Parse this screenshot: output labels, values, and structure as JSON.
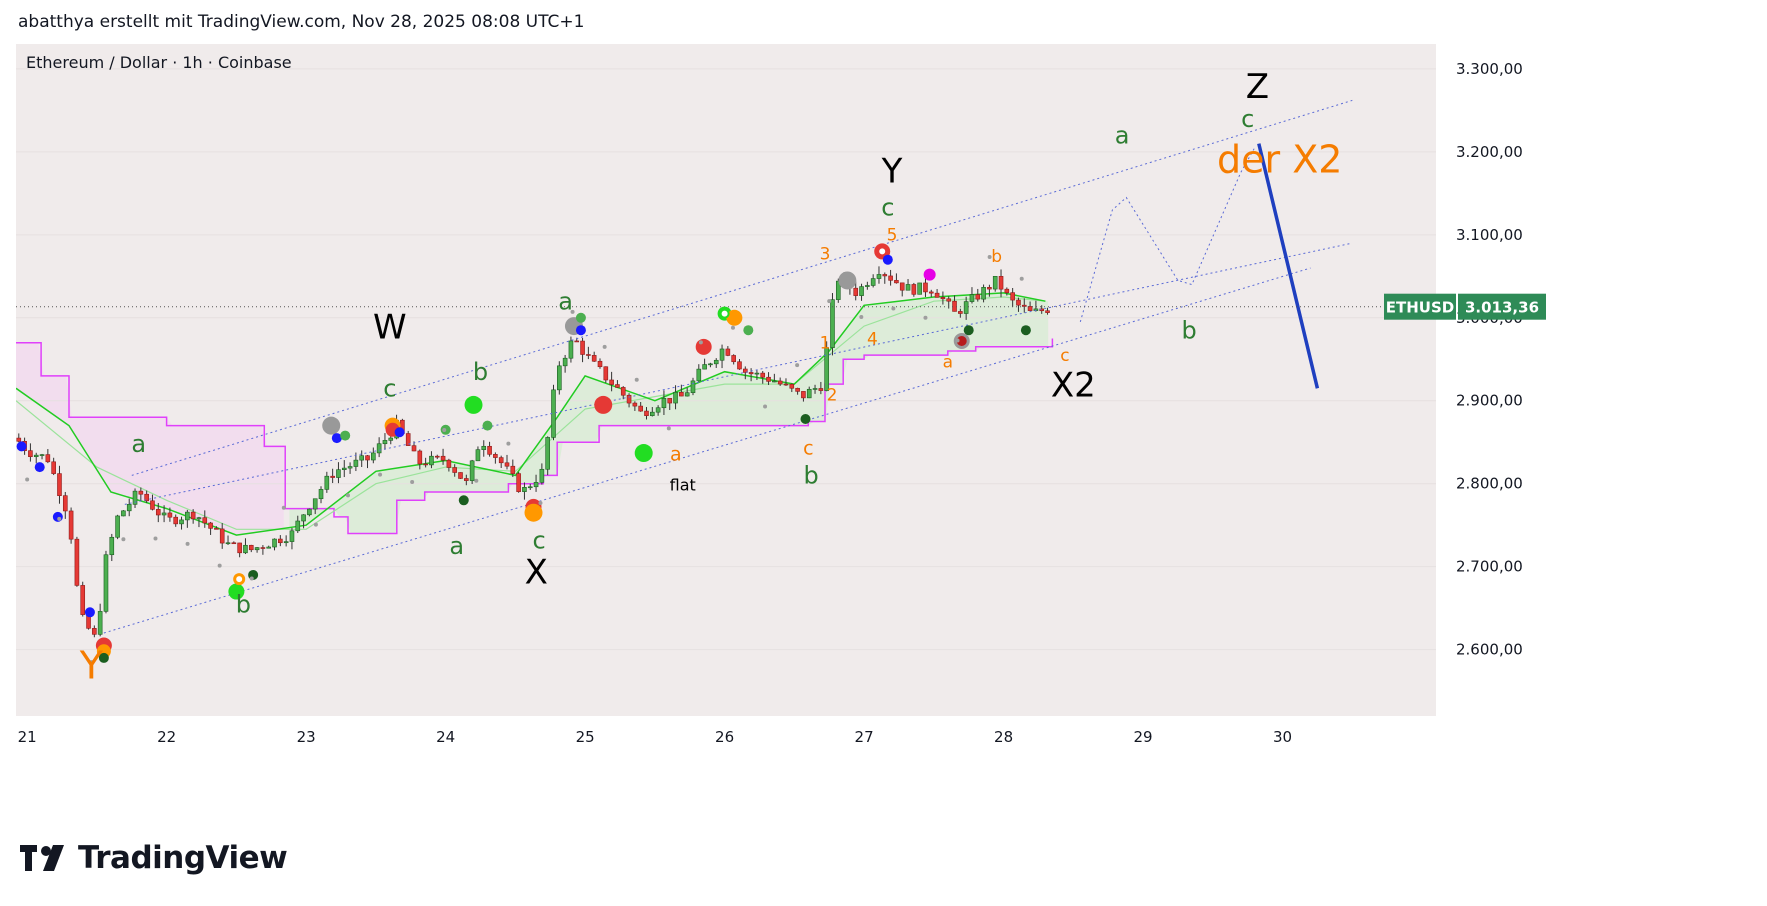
{
  "header": {
    "caption": "abatthya erstellt mit TradingView.com, Nov 28, 2025 08:08 UTC+1"
  },
  "footer": {
    "brand": "TradingView",
    "logo_icon": "tradingview-logo-icon"
  },
  "colors": {
    "up": "#26a69a",
    "down": "#ef5350",
    "bg": "#f0ebeb",
    "axis_bg": "#ffffff",
    "channel": "#5b6bd6",
    "magenta": "#e040fb",
    "green_line": "#22cc22",
    "wave_green": "#2e7d32",
    "wave_orange": "#f57c00",
    "black": "#000000",
    "blue_projection": "#1f3fbf",
    "price_badge": "#2e8b57"
  },
  "chart_data": {
    "type": "candlestick",
    "symbol_line": "Ethereum / Dollar · 1h · Coinbase",
    "x_ticks": [
      "21",
      "22",
      "23",
      "24",
      "25",
      "26",
      "27",
      "28",
      "29",
      "30"
    ],
    "x_tick_days": [
      21,
      22,
      23,
      24,
      25,
      26,
      27,
      28,
      29,
      30
    ],
    "y_ticks": [
      "3.300,00",
      "3.200,00",
      "3.100,00",
      "3.000,00",
      "2.900,00",
      "2.800,00",
      "2.700,00",
      "2.600,00"
    ],
    "y_tick_values": [
      3300,
      3200,
      3100,
      3000,
      2900,
      2800,
      2700,
      2600
    ],
    "ylim": [
      2520,
      3330
    ],
    "xlim": [
      20.92,
      31.1
    ],
    "last_price": {
      "symbol": "ETHUSD",
      "value": "3.013,36",
      "price": 3013.36
    },
    "price_path": [
      [
        20.92,
        2855
      ],
      [
        21.0,
        2840
      ],
      [
        21.15,
        2830
      ],
      [
        21.3,
        2760
      ],
      [
        21.38,
        2640
      ],
      [
        21.5,
        2610
      ],
      [
        21.55,
        2700
      ],
      [
        21.65,
        2760
      ],
      [
        21.8,
        2790
      ],
      [
        22.0,
        2755
      ],
      [
        22.2,
        2765
      ],
      [
        22.45,
        2725
      ],
      [
        22.6,
        2720
      ],
      [
        22.9,
        2740
      ],
      [
        23.0,
        2770
      ],
      [
        23.2,
        2815
      ],
      [
        23.45,
        2830
      ],
      [
        23.65,
        2870
      ],
      [
        23.8,
        2825
      ],
      [
        24.0,
        2830
      ],
      [
        24.15,
        2800
      ],
      [
        24.25,
        2855
      ],
      [
        24.4,
        2825
      ],
      [
        24.55,
        2790
      ],
      [
        24.7,
        2815
      ],
      [
        24.8,
        2940
      ],
      [
        24.92,
        2975
      ],
      [
        25.05,
        2945
      ],
      [
        25.2,
        2920
      ],
      [
        25.4,
        2885
      ],
      [
        25.55,
        2900
      ],
      [
        25.7,
        2905
      ],
      [
        25.85,
        2940
      ],
      [
        26.0,
        2965
      ],
      [
        26.15,
        2935
      ],
      [
        26.35,
        2925
      ],
      [
        26.55,
        2905
      ],
      [
        26.7,
        2920
      ],
      [
        26.8,
        3050
      ],
      [
        26.95,
        3030
      ],
      [
        27.1,
        3060
      ],
      [
        27.3,
        3035
      ],
      [
        27.5,
        3035
      ],
      [
        27.65,
        3005
      ],
      [
        27.8,
        3025
      ],
      [
        27.95,
        3045
      ],
      [
        28.05,
        3020
      ],
      [
        28.2,
        3005
      ],
      [
        28.35,
        3013
      ]
    ],
    "ema_fast": [
      [
        20.92,
        2915
      ],
      [
        21.3,
        2870
      ],
      [
        21.6,
        2790
      ],
      [
        22.0,
        2770
      ],
      [
        22.5,
        2738
      ],
      [
        23.0,
        2750
      ],
      [
        23.5,
        2815
      ],
      [
        24.0,
        2828
      ],
      [
        24.5,
        2810
      ],
      [
        24.8,
        2880
      ],
      [
        25.0,
        2930
      ],
      [
        25.5,
        2900
      ],
      [
        26.0,
        2935
      ],
      [
        26.5,
        2920
      ],
      [
        26.75,
        2960
      ],
      [
        27.0,
        3015
      ],
      [
        27.5,
        3025
      ],
      [
        28.0,
        3030
      ],
      [
        28.3,
        3020
      ]
    ],
    "ema_slow": [
      [
        20.92,
        2900
      ],
      [
        21.5,
        2820
      ],
      [
        22.0,
        2780
      ],
      [
        22.5,
        2745
      ],
      [
        23.0,
        2745
      ],
      [
        23.5,
        2800
      ],
      [
        24.0,
        2820
      ],
      [
        24.5,
        2815
      ],
      [
        25.0,
        2890
      ],
      [
        25.5,
        2905
      ],
      [
        26.0,
        2920
      ],
      [
        26.5,
        2920
      ],
      [
        27.0,
        2990
      ],
      [
        27.5,
        3020
      ],
      [
        28.0,
        3025
      ],
      [
        28.3,
        3020
      ]
    ],
    "support_step": [
      [
        20.92,
        2970
      ],
      [
        21.1,
        2930
      ],
      [
        21.3,
        2880
      ],
      [
        22.0,
        2870
      ],
      [
        22.7,
        2845
      ],
      [
        22.85,
        2770
      ],
      [
        23.2,
        2760
      ],
      [
        23.3,
        2740
      ],
      [
        23.6,
        2740
      ],
      [
        23.65,
        2780
      ],
      [
        23.85,
        2790
      ],
      [
        24.45,
        2800
      ],
      [
        24.7,
        2810
      ],
      [
        24.8,
        2850
      ],
      [
        25.1,
        2870
      ],
      [
        26.6,
        2875
      ],
      [
        26.72,
        2920
      ],
      [
        26.85,
        2950
      ],
      [
        27.0,
        2955
      ],
      [
        27.6,
        2960
      ],
      [
        27.8,
        2965
      ],
      [
        28.35,
        2975
      ]
    ],
    "upper_channel": [
      [
        21.75,
        2810
      ],
      [
        30.5,
        3262
      ]
    ],
    "mid_channel": [
      [
        21.7,
        2775
      ],
      [
        30.5,
        3090
      ]
    ],
    "lower_channel": [
      [
        21.55,
        2620
      ],
      [
        30.2,
        3060
      ]
    ],
    "projection_path": [
      [
        28.55,
        2995
      ],
      [
        28.78,
        3130
      ],
      [
        28.88,
        3145
      ],
      [
        29.25,
        3045
      ],
      [
        29.35,
        3040
      ],
      [
        29.7,
        3175
      ],
      [
        29.8,
        3205
      ]
    ],
    "projection_drop": [
      [
        29.83,
        3210
      ],
      [
        30.25,
        2915
      ]
    ],
    "wave_labels": [
      {
        "text": "Y",
        "day": 21.46,
        "price": 2565,
        "color": "wave_orange",
        "size": 38
      },
      {
        "text": "a",
        "day": 21.8,
        "price": 2838,
        "color": "wave_green",
        "size": 24
      },
      {
        "text": "b",
        "day": 22.55,
        "price": 2645,
        "color": "wave_green",
        "size": 24
      },
      {
        "text": "W",
        "day": 23.6,
        "price": 2975,
        "color": "black",
        "size": 34
      },
      {
        "text": "c",
        "day": 23.6,
        "price": 2905,
        "color": "wave_green",
        "size": 24
      },
      {
        "text": "b",
        "day": 24.25,
        "price": 2925,
        "color": "wave_green",
        "size": 24
      },
      {
        "text": "a",
        "day": 24.08,
        "price": 2715,
        "color": "wave_green",
        "size": 24
      },
      {
        "text": "c",
        "day": 24.67,
        "price": 2722,
        "color": "wave_green",
        "size": 24
      },
      {
        "text": "X",
        "day": 24.65,
        "price": 2680,
        "color": "black",
        "size": 34
      },
      {
        "text": "a",
        "day": 24.86,
        "price": 3010,
        "color": "wave_green",
        "size": 24
      },
      {
        "text": "a",
        "day": 25.65,
        "price": 2828,
        "color": "wave_orange",
        "size": 19
      },
      {
        "text": "flat",
        "day": 25.7,
        "price": 2792,
        "color": "black",
        "size": 16
      },
      {
        "text": "c",
        "day": 26.6,
        "price": 2835,
        "color": "wave_orange",
        "size": 19
      },
      {
        "text": "b",
        "day": 26.62,
        "price": 2800,
        "color": "wave_green",
        "size": 24
      },
      {
        "text": "1",
        "day": 26.72,
        "price": 2963,
        "color": "wave_orange",
        "size": 17
      },
      {
        "text": "2",
        "day": 26.77,
        "price": 2900,
        "color": "wave_orange",
        "size": 17
      },
      {
        "text": "3",
        "day": 26.72,
        "price": 3070,
        "color": "wave_orange",
        "size": 17
      },
      {
        "text": "4",
        "day": 27.06,
        "price": 2968,
        "color": "wave_orange",
        "size": 17
      },
      {
        "text": "5",
        "day": 27.2,
        "price": 3093,
        "color": "wave_orange",
        "size": 17
      },
      {
        "text": "c",
        "day": 27.17,
        "price": 3123,
        "color": "wave_green",
        "size": 24
      },
      {
        "text": "Y",
        "day": 27.2,
        "price": 3163,
        "color": "black",
        "size": 34
      },
      {
        "text": "a",
        "day": 27.6,
        "price": 2940,
        "color": "wave_orange",
        "size": 17
      },
      {
        "text": "b",
        "day": 27.95,
        "price": 3067,
        "color": "wave_orange",
        "size": 17
      },
      {
        "text": "c",
        "day": 28.44,
        "price": 2948,
        "color": "wave_orange",
        "size": 17
      },
      {
        "text": "X2",
        "day": 28.5,
        "price": 2905,
        "color": "black",
        "size": 34
      },
      {
        "text": "a",
        "day": 28.85,
        "price": 3210,
        "color": "wave_green",
        "size": 24
      },
      {
        "text": "b",
        "day": 29.33,
        "price": 2975,
        "color": "wave_green",
        "size": 24
      },
      {
        "text": "c",
        "day": 29.75,
        "price": 3230,
        "color": "wave_green",
        "size": 24
      },
      {
        "text": "der X2",
        "day": 29.98,
        "price": 3175,
        "color": "wave_orange",
        "size": 38
      },
      {
        "text": "Z",
        "day": 29.82,
        "price": 3265,
        "color": "black",
        "size": 34
      }
    ],
    "signal_dots": [
      {
        "day": 21.55,
        "price": 2605,
        "color": "#e53935",
        "r": 8
      },
      {
        "day": 21.55,
        "price": 2598,
        "color": "#ff9800",
        "r": 7
      },
      {
        "day": 21.55,
        "price": 2590,
        "color": "#1b5e20",
        "r": 5
      },
      {
        "day": 21.45,
        "price": 2645,
        "color": "#1a1aff",
        "r": 5
      },
      {
        "day": 21.22,
        "price": 2760,
        "color": "#1a1aff",
        "r": 5
      },
      {
        "day": 20.96,
        "price": 2845,
        "color": "#1a1aff",
        "r": 5
      },
      {
        "day": 21.09,
        "price": 2820,
        "color": "#1a1aff",
        "r": 5
      },
      {
        "day": 22.5,
        "price": 2670,
        "color": "#22dd22",
        "r": 8
      },
      {
        "day": 22.52,
        "price": 2685,
        "color": "#ff9800",
        "r": 6
      },
      {
        "day": 22.62,
        "price": 2690,
        "color": "#1b5e20",
        "r": 5
      },
      {
        "day": 23.18,
        "price": 2870,
        "color": "#999999",
        "r": 9
      },
      {
        "day": 23.22,
        "price": 2855,
        "color": "#1a1aff",
        "r": 5
      },
      {
        "day": 23.28,
        "price": 2858,
        "color": "#4caf50",
        "r": 5
      },
      {
        "day": 23.62,
        "price": 2870,
        "color": "#ff9800",
        "r": 8
      },
      {
        "day": 23.62,
        "price": 2865,
        "color": "#e53935",
        "r": 7
      },
      {
        "day": 23.67,
        "price": 2862,
        "color": "#1a1aff",
        "r": 5
      },
      {
        "day": 24.0,
        "price": 2865,
        "color": "#4caf50",
        "r": 5
      },
      {
        "day": 24.2,
        "price": 2895,
        "color": "#22dd22",
        "r": 9
      },
      {
        "day": 24.13,
        "price": 2780,
        "color": "#1b5e20",
        "r": 5
      },
      {
        "day": 24.3,
        "price": 2870,
        "color": "#4caf50",
        "r": 5
      },
      {
        "day": 24.63,
        "price": 2772,
        "color": "#e53935",
        "r": 8
      },
      {
        "day": 24.63,
        "price": 2765,
        "color": "#ff9800",
        "r": 9
      },
      {
        "day": 24.92,
        "price": 2990,
        "color": "#999999",
        "r": 9
      },
      {
        "day": 24.97,
        "price": 2985,
        "color": "#1a1aff",
        "r": 5
      },
      {
        "day": 24.97,
        "price": 3000,
        "color": "#4caf50",
        "r": 5
      },
      {
        "day": 25.13,
        "price": 2895,
        "color": "#e53935",
        "r": 9
      },
      {
        "day": 25.42,
        "price": 2837,
        "color": "#22dd22",
        "r": 9
      },
      {
        "day": 25.85,
        "price": 2965,
        "color": "#e53935",
        "r": 8
      },
      {
        "day": 26.0,
        "price": 3005,
        "color": "#22dd22",
        "r": 7
      },
      {
        "day": 26.07,
        "price": 3000,
        "color": "#ff9800",
        "r": 8
      },
      {
        "day": 26.17,
        "price": 2985,
        "color": "#4caf50",
        "r": 5
      },
      {
        "day": 26.58,
        "price": 2878,
        "color": "#1b5e20",
        "r": 5
      },
      {
        "day": 26.88,
        "price": 3045,
        "color": "#999999",
        "r": 9
      },
      {
        "day": 27.13,
        "price": 3080,
        "color": "#e53935",
        "r": 8
      },
      {
        "day": 27.17,
        "price": 3070,
        "color": "#1a1aff",
        "r": 5
      },
      {
        "day": 27.47,
        "price": 3052,
        "color": "#e600e6",
        "r": 6
      },
      {
        "day": 27.7,
        "price": 2972,
        "color": "#999999",
        "r": 8
      },
      {
        "day": 27.7,
        "price": 2972,
        "color": "#b71c1c",
        "r": 5
      },
      {
        "day": 27.75,
        "price": 2985,
        "color": "#1b5e20",
        "r": 5
      },
      {
        "day": 28.16,
        "price": 2985,
        "color": "#1b5e20",
        "r": 5
      }
    ],
    "ring_markers": [
      {
        "day": 26.0,
        "price": 3005,
        "color": "#22dd22"
      },
      {
        "day": 27.13,
        "price": 3080,
        "color": "#e53935"
      },
      {
        "day": 22.52,
        "price": 2685,
        "color": "#ff9800"
      }
    ]
  }
}
